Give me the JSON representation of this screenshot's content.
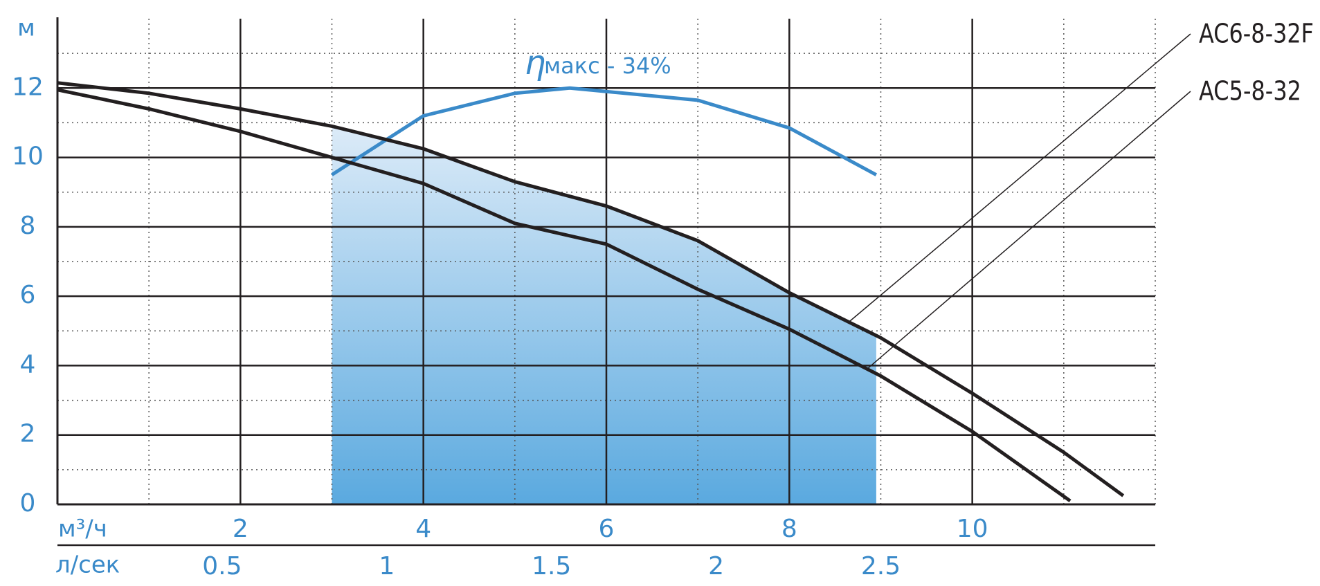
{
  "chart_data": {
    "type": "line",
    "y_label": "м",
    "x_label": "м³/ч",
    "x2_label": "л/сек",
    "xlim": [
      0,
      12
    ],
    "xticks": [
      2,
      4,
      6,
      8,
      10
    ],
    "x_minor_ticks": [
      1,
      3,
      5,
      7,
      9,
      11
    ],
    "x2lim": [
      0,
      3.3333
    ],
    "x2ticks": [
      0.5,
      1,
      1.5,
      2,
      2.5
    ],
    "ylim": [
      0,
      14
    ],
    "yticks": [
      0,
      2,
      4,
      6,
      8,
      10,
      12
    ],
    "y_minor_ticks": [
      1,
      3,
      5,
      7,
      9,
      11,
      13
    ],
    "grid": true,
    "series": [
      {
        "name": "AC6-8-32F",
        "color": "#231f20",
        "x": [
          0,
          1,
          2,
          3,
          4,
          5,
          6,
          7,
          8,
          9,
          10,
          11,
          11.65
        ],
        "values": [
          12.15,
          11.85,
          11.4,
          10.9,
          10.25,
          9.3,
          8.6,
          7.6,
          6.1,
          4.8,
          3.2,
          1.5,
          0.25
        ]
      },
      {
        "name": "AC5-8-32",
        "color": "#231f20",
        "x": [
          0,
          1,
          2,
          3,
          4,
          5,
          6,
          7,
          8,
          9,
          10,
          11.07
        ],
        "values": [
          11.95,
          11.4,
          10.75,
          10.0,
          9.25,
          8.1,
          7.5,
          6.2,
          5.05,
          3.7,
          2.1,
          0.1
        ]
      }
    ],
    "efficiency": {
      "symbol": "η",
      "text": "макс - 34%",
      "color": "#3a8ac9",
      "x": [
        3,
        4,
        5,
        5.6,
        7,
        8,
        8.95
      ],
      "values": [
        9.5,
        11.2,
        11.85,
        12,
        11.65,
        10.85,
        9.5
      ]
    },
    "working_range": [
      3,
      8.95
    ]
  }
}
